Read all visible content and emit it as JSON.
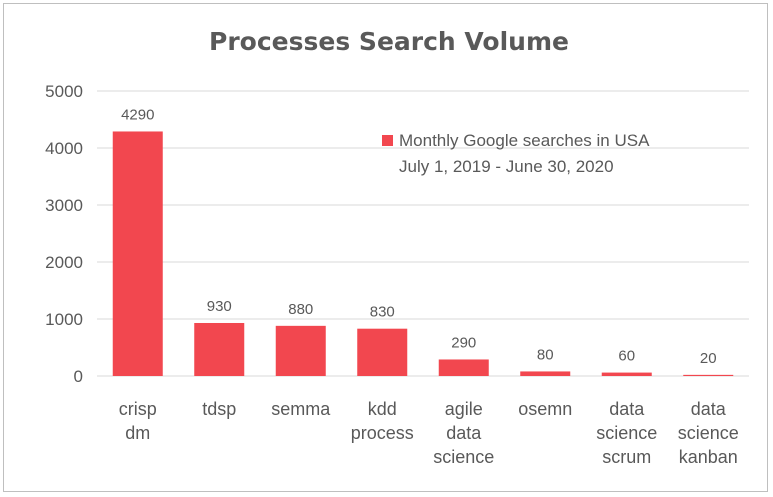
{
  "chart_data": {
    "type": "bar",
    "title": "Processes Search Volume",
    "categories": [
      [
        "crisp",
        "dm"
      ],
      [
        "tdsp"
      ],
      [
        "semma"
      ],
      [
        "kdd",
        "process"
      ],
      [
        "agile",
        "data",
        "science"
      ],
      [
        "osemn"
      ],
      [
        "data",
        "science",
        "scrum"
      ],
      [
        "data",
        "science",
        "kanban"
      ]
    ],
    "series": [
      {
        "name_lines": [
          "Monthly Google searches in USA",
          "July 1, 2019 - June 30, 2020"
        ],
        "values": [
          4290,
          930,
          880,
          830,
          290,
          80,
          60,
          20
        ],
        "color": "#f2474f"
      }
    ],
    "ylim": [
      0,
      5000
    ],
    "yticks": [
      0,
      1000,
      2000,
      3000,
      4000,
      5000
    ],
    "grid": true,
    "legend_position": "top-right",
    "data_labels": true,
    "xlabel": "",
    "ylabel": ""
  }
}
